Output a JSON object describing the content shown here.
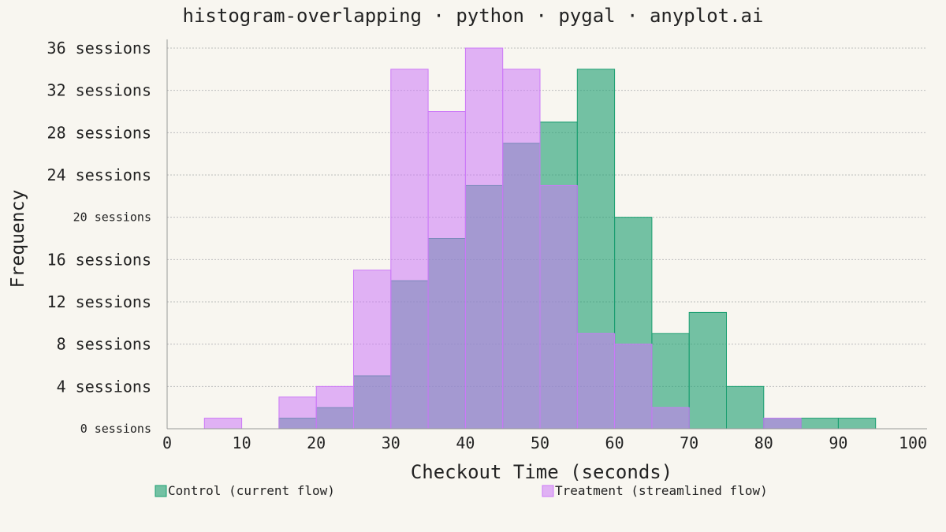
{
  "chart_data": {
    "type": "histogram",
    "title": "histogram-overlapping · python · pygal · anyplot.ai",
    "xlabel": "Checkout Time (seconds)",
    "ylabel": "Frequency",
    "xlim": [
      0,
      100
    ],
    "ylim": [
      0,
      36
    ],
    "x_ticks": [
      0,
      10,
      20,
      30,
      40,
      50,
      60,
      70,
      80,
      90,
      100
    ],
    "y_ticks": [
      0,
      4,
      8,
      12,
      16,
      20,
      24,
      28,
      32,
      36
    ],
    "y_tick_labels": [
      "0 sessions",
      "4 sessions",
      "8 sessions",
      "12 sessions",
      "16 sessions",
      "20 sessions",
      "24 sessions",
      "28 sessions",
      "32 sessions",
      "36 sessions"
    ],
    "grid": true,
    "legend_position": "bottom",
    "bin_edges": [
      0,
      5,
      10,
      15,
      20,
      25,
      30,
      35,
      40,
      45,
      50,
      55,
      60,
      65,
      70,
      75,
      80,
      85,
      90,
      95,
      100
    ],
    "series": [
      {
        "name": "Control (current flow)",
        "color": "#1a9e70",
        "values": [
          0,
          0,
          0,
          1,
          2,
          5,
          14,
          18,
          23,
          27,
          29,
          34,
          20,
          9,
          11,
          4,
          1,
          1,
          1,
          0
        ]
      },
      {
        "name": "Treatment (streamlined flow)",
        "color": "#cc79f7",
        "values": [
          0,
          1,
          0,
          3,
          4,
          15,
          34,
          30,
          36,
          34,
          23,
          9,
          8,
          2,
          0,
          0,
          1,
          0,
          0,
          0
        ]
      }
    ]
  }
}
